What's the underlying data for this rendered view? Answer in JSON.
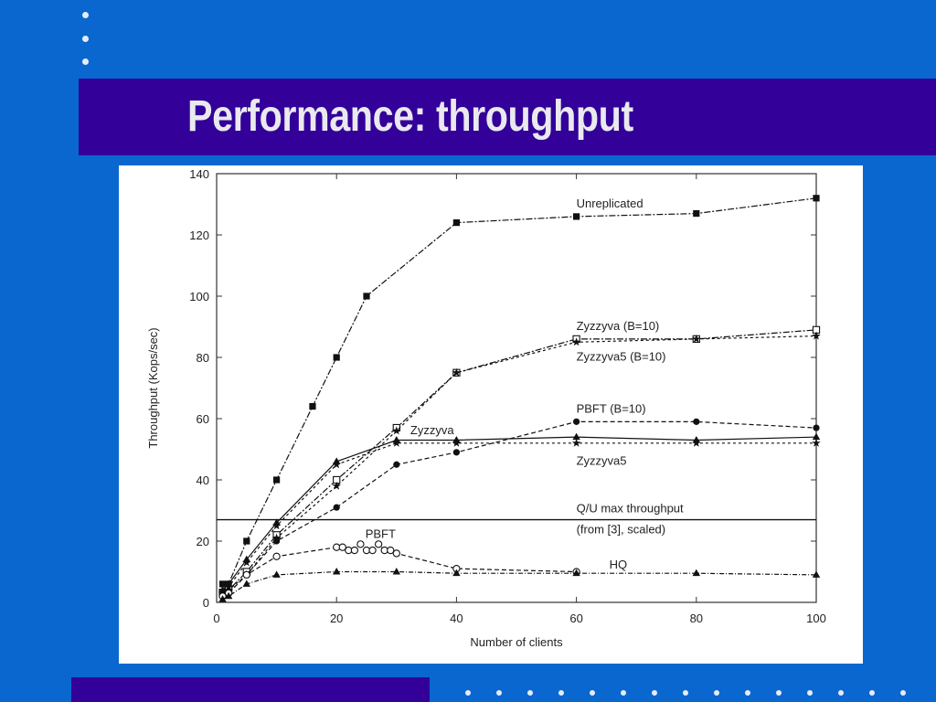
{
  "slide": {
    "title": "Performance: throughput"
  },
  "colors": {
    "background": "#0a67cf",
    "band": "#330099",
    "title_text": "#e9e9ee",
    "bullet": "#e6ecf5"
  },
  "chart_data": {
    "type": "line",
    "title": "",
    "xlabel": "Number of clients",
    "ylabel": "Throughput (Kops/sec)",
    "xlim": [
      0,
      100
    ],
    "ylim": [
      0,
      140
    ],
    "xticks": [
      0,
      20,
      40,
      60,
      80,
      100
    ],
    "yticks": [
      0,
      20,
      40,
      60,
      80,
      100,
      120,
      140
    ],
    "grid": false,
    "series": [
      {
        "name": "Unreplicated",
        "marker": "square",
        "dash": "7 2 2 2",
        "x": [
          1,
          2,
          5,
          10,
          16,
          20,
          25,
          40,
          60,
          80,
          100
        ],
        "y": [
          6,
          6,
          20,
          40,
          64,
          80,
          100,
          124,
          126,
          127,
          132
        ]
      },
      {
        "name": "Zyzzyva (B=10)",
        "marker": "open-square",
        "dash": "7 2 2 2",
        "x": [
          1,
          2,
          5,
          10,
          20,
          30,
          40,
          60,
          80,
          100
        ],
        "y": [
          3,
          4,
          10,
          22,
          40,
          57,
          75,
          86,
          86,
          89
        ]
      },
      {
        "name": "Zyzzyva5 (B=10)",
        "marker": "star",
        "dash": "3 3",
        "x": [
          1,
          2,
          5,
          10,
          20,
          30,
          40,
          60,
          80,
          100
        ],
        "y": [
          3,
          4,
          9,
          21,
          38,
          56,
          75,
          85,
          86,
          87
        ]
      },
      {
        "name": "PBFT (B=10)",
        "marker": "circle",
        "dash": "5 3",
        "x": [
          1,
          2,
          5,
          10,
          20,
          30,
          40,
          60,
          80,
          100
        ],
        "y": [
          2,
          3,
          9,
          20,
          31,
          45,
          49,
          59,
          59,
          57
        ]
      },
      {
        "name": "Zyzzyva",
        "marker": "triangle",
        "dash": "",
        "x": [
          1,
          2,
          5,
          10,
          20,
          30,
          40,
          60,
          80,
          100
        ],
        "y": [
          4,
          6,
          14,
          26,
          46,
          53,
          53,
          54,
          53,
          54
        ]
      },
      {
        "name": "Zyzzyva5",
        "marker": "star",
        "dash": "3 3",
        "x": [
          1,
          2,
          5,
          10,
          20,
          30,
          40,
          60,
          80,
          100
        ],
        "y": [
          4,
          5,
          13,
          25,
          45,
          52,
          52,
          52,
          52,
          52
        ]
      },
      {
        "name": "PBFT",
        "marker": "open-circle",
        "dash": "5 3",
        "x": [
          1,
          2,
          5,
          10,
          20,
          21,
          22,
          23,
          24,
          25,
          26,
          27,
          28,
          29,
          30,
          40,
          60
        ],
        "y": [
          2,
          3,
          9,
          15,
          18,
          18,
          17,
          17,
          19,
          17,
          17,
          19,
          17,
          17,
          16,
          11,
          10
        ]
      },
      {
        "name": "HQ",
        "marker": "triangle",
        "dash": "5 2 1 2",
        "x": [
          1,
          2,
          5,
          10,
          20,
          30,
          40,
          60,
          80,
          100
        ],
        "y": [
          1,
          2,
          6,
          9,
          10,
          10,
          9.5,
          9.5,
          9.5,
          9
        ]
      }
    ],
    "reference_lines": [
      {
        "label_line1": "Q/U max throughput",
        "label_line2": "(from [3], scaled)",
        "y": 27
      }
    ]
  }
}
